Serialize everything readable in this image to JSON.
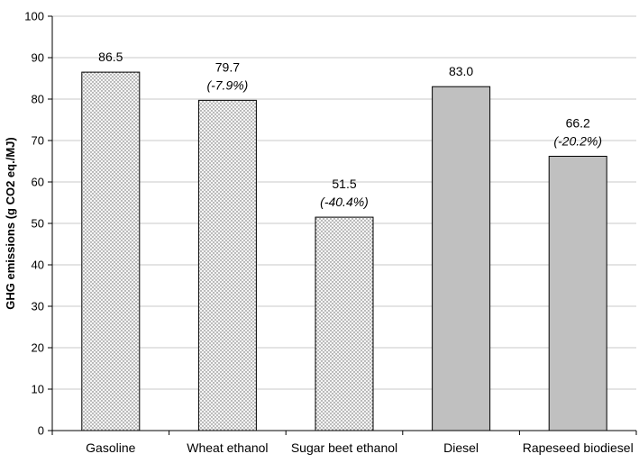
{
  "chart_data": {
    "type": "bar",
    "title": "",
    "xlabel": "",
    "ylabel": "GHG emissions (g CO2 eq./MJ)",
    "ylim": [
      0,
      100
    ],
    "yticks": [
      0,
      10,
      20,
      30,
      40,
      50,
      60,
      70,
      80,
      90,
      100
    ],
    "ytick_labels": [
      "0",
      "10",
      "20",
      "30",
      "40",
      "50",
      "60",
      "70",
      "80",
      "90",
      "100"
    ],
    "grid": true,
    "categories": [
      "Gasoline",
      "Wheat ethanol",
      "Sugar beet ethanol",
      "Diesel",
      "Rapeseed biodiesel"
    ],
    "values": [
      86.5,
      79.7,
      51.5,
      83.0,
      66.2
    ],
    "value_labels": [
      "86.5",
      "79.7",
      "51.5",
      "83.0",
      "66.2"
    ],
    "change_labels": [
      "",
      "(-7.9%)",
      "(-40.4%)",
      "",
      "(-20.2%)"
    ],
    "fills": [
      "dotted",
      "dotted",
      "dotted",
      "solid",
      "solid"
    ],
    "colors": {
      "solid_fill": "#c0c0c0",
      "dot_background": "#f4f4f4",
      "dot_color": "#666666",
      "gridline": "#c8c8c8",
      "axis": "#000000"
    }
  }
}
